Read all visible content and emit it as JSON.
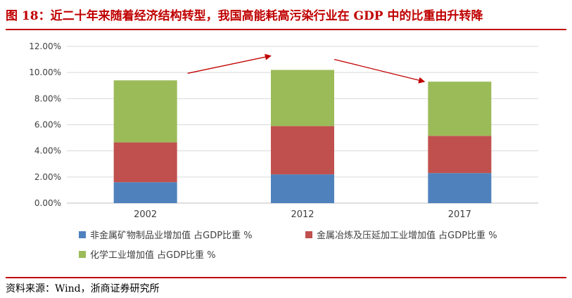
{
  "figure": {
    "title": "图 18：近二十年来随着经济结构转型，我国高能耗高污染行业在 GDP 中的比重由升转降",
    "source": "资料来源：Wind，浙商证券研究所"
  },
  "colors": {
    "title_red": "#c00000",
    "series": [
      "#4f81bd",
      "#c0504d",
      "#9bbb59"
    ],
    "arrow": "#c00000"
  },
  "chart_data": {
    "type": "bar",
    "stacked": true,
    "categories": [
      "2002",
      "2012",
      "2017"
    ],
    "series": [
      {
        "name": "非金属矿物制品业增加值 占GDP比重 %",
        "values": [
          1.6,
          2.2,
          2.3
        ]
      },
      {
        "name": "金属冶炼及压延加工业增加值 占GDP比重 %",
        "values": [
          3.05,
          3.7,
          2.85
        ]
      },
      {
        "name": "化学工业增加值 占GDP比重 %",
        "values": [
          4.75,
          4.3,
          4.15
        ]
      }
    ],
    "ylim": [
      0,
      12
    ],
    "yticks": [
      "0.00%",
      "2.00%",
      "4.00%",
      "6.00%",
      "8.00%",
      "10.00%",
      "12.00%"
    ],
    "grid": true,
    "legend": "bottom",
    "annotations": [
      "rising arrow 2002→2012",
      "falling arrow 2012→2017"
    ]
  }
}
